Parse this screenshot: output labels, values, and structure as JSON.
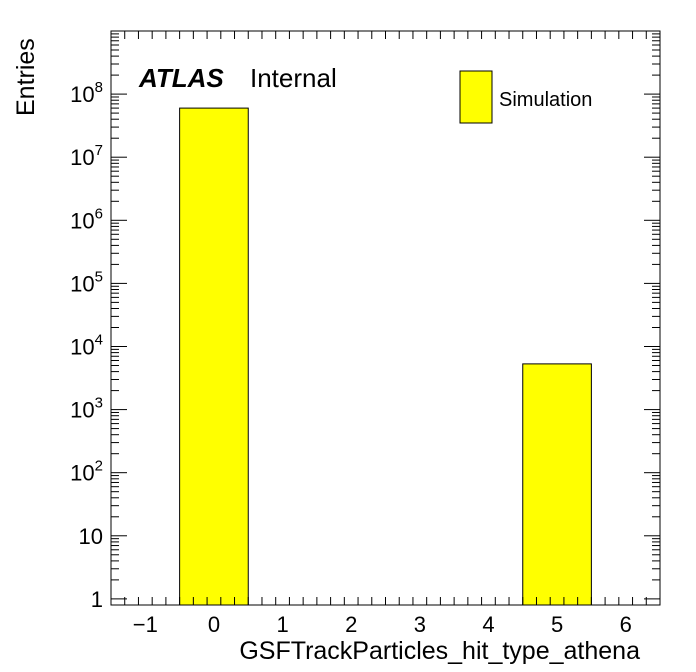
{
  "chart_data": {
    "type": "bar",
    "ylabel": "Entries",
    "xlabel": "GSFTrackParticles_hit_type_athena",
    "x_ticks": [
      -1,
      0,
      1,
      2,
      3,
      4,
      5,
      6
    ],
    "x_tick_labels": [
      "−1",
      "0",
      "1",
      "2",
      "3",
      "4",
      "5",
      "6"
    ],
    "xlim": [
      -1.5,
      6.5
    ],
    "ylim": [
      0.8,
      1000000000
    ],
    "yscale": "log",
    "y_tick_labels": [
      {
        "value": 1,
        "base": "1",
        "exp": ""
      },
      {
        "value": 10,
        "base": "10",
        "exp": ""
      },
      {
        "value": 100,
        "base": "10",
        "exp": "2"
      },
      {
        "value": 1000,
        "base": "10",
        "exp": "3"
      },
      {
        "value": 10000,
        "base": "10",
        "exp": "4"
      },
      {
        "value": 100000,
        "base": "10",
        "exp": "5"
      },
      {
        "value": 1000000,
        "base": "10",
        "exp": "6"
      },
      {
        "value": 10000000,
        "base": "10",
        "exp": "7"
      },
      {
        "value": 100000000,
        "base": "10",
        "exp": "8"
      }
    ],
    "bins": [
      {
        "low": -0.5,
        "high": 0.5,
        "value": 60000000
      },
      {
        "low": 4.5,
        "high": 5.5,
        "value": 5300
      }
    ],
    "series": [
      {
        "name": "Simulation",
        "color": "#ffff00"
      }
    ],
    "legend_position": "top-right",
    "grid": false,
    "label_bold": "ATLAS",
    "label_status": "Internal"
  }
}
